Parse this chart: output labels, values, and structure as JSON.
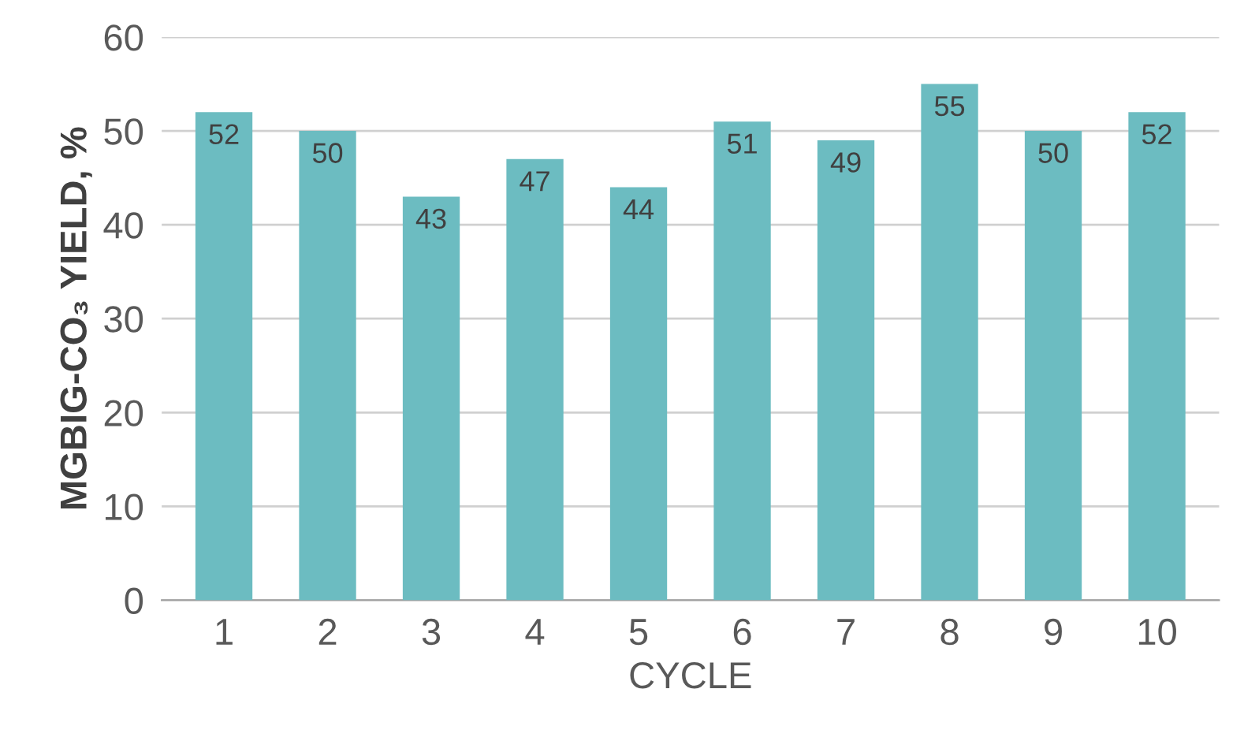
{
  "chart_data": {
    "type": "bar",
    "xlabel": "CYCLE",
    "ylabel": "MGBIG-CO₃ YIELD, %",
    "categories": [
      "1",
      "2",
      "3",
      "4",
      "5",
      "6",
      "7",
      "8",
      "9",
      "10"
    ],
    "values": [
      52,
      50,
      43,
      47,
      44,
      51,
      49,
      55,
      50,
      52
    ],
    "color": "#6cbcc1",
    "ylim": [
      0,
      60
    ],
    "yticks": [
      0,
      10,
      20,
      30,
      40,
      50,
      60
    ],
    "grid": "y",
    "data_labels": true
  }
}
